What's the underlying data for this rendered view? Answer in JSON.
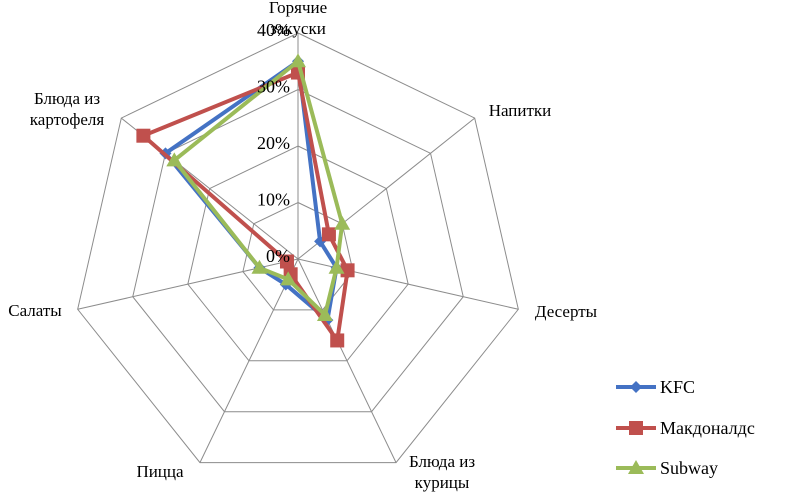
{
  "chart_data": {
    "type": "radar",
    "categories": [
      [
        "Горячие",
        "закуски"
      ],
      [
        "Напитки"
      ],
      [
        "Десерты"
      ],
      [
        "Блюда из",
        "курицы"
      ],
      [
        "Пицца"
      ],
      [
        "Салаты"
      ],
      [
        "Блюда из",
        "картофеля"
      ]
    ],
    "ticks": [
      "0%",
      "10%",
      "20%",
      "30%",
      "40%"
    ],
    "rmax": 40,
    "series": [
      {
        "name": "KFC",
        "color": "#4472C4",
        "marker": "diamond",
        "values": [
          35,
          5,
          7,
          12,
          5,
          7,
          30
        ]
      },
      {
        "name": "Макдоналдс",
        "color": "#C0504D",
        "marker": "square",
        "values": [
          33,
          7,
          9,
          16,
          3,
          2,
          35
        ]
      },
      {
        "name": "Subway",
        "color": "#9BBB59",
        "marker": "triangle",
        "values": [
          35,
          10,
          7,
          11,
          4,
          7,
          28
        ]
      }
    ],
    "grid": true,
    "legend": "bottom-right"
  }
}
